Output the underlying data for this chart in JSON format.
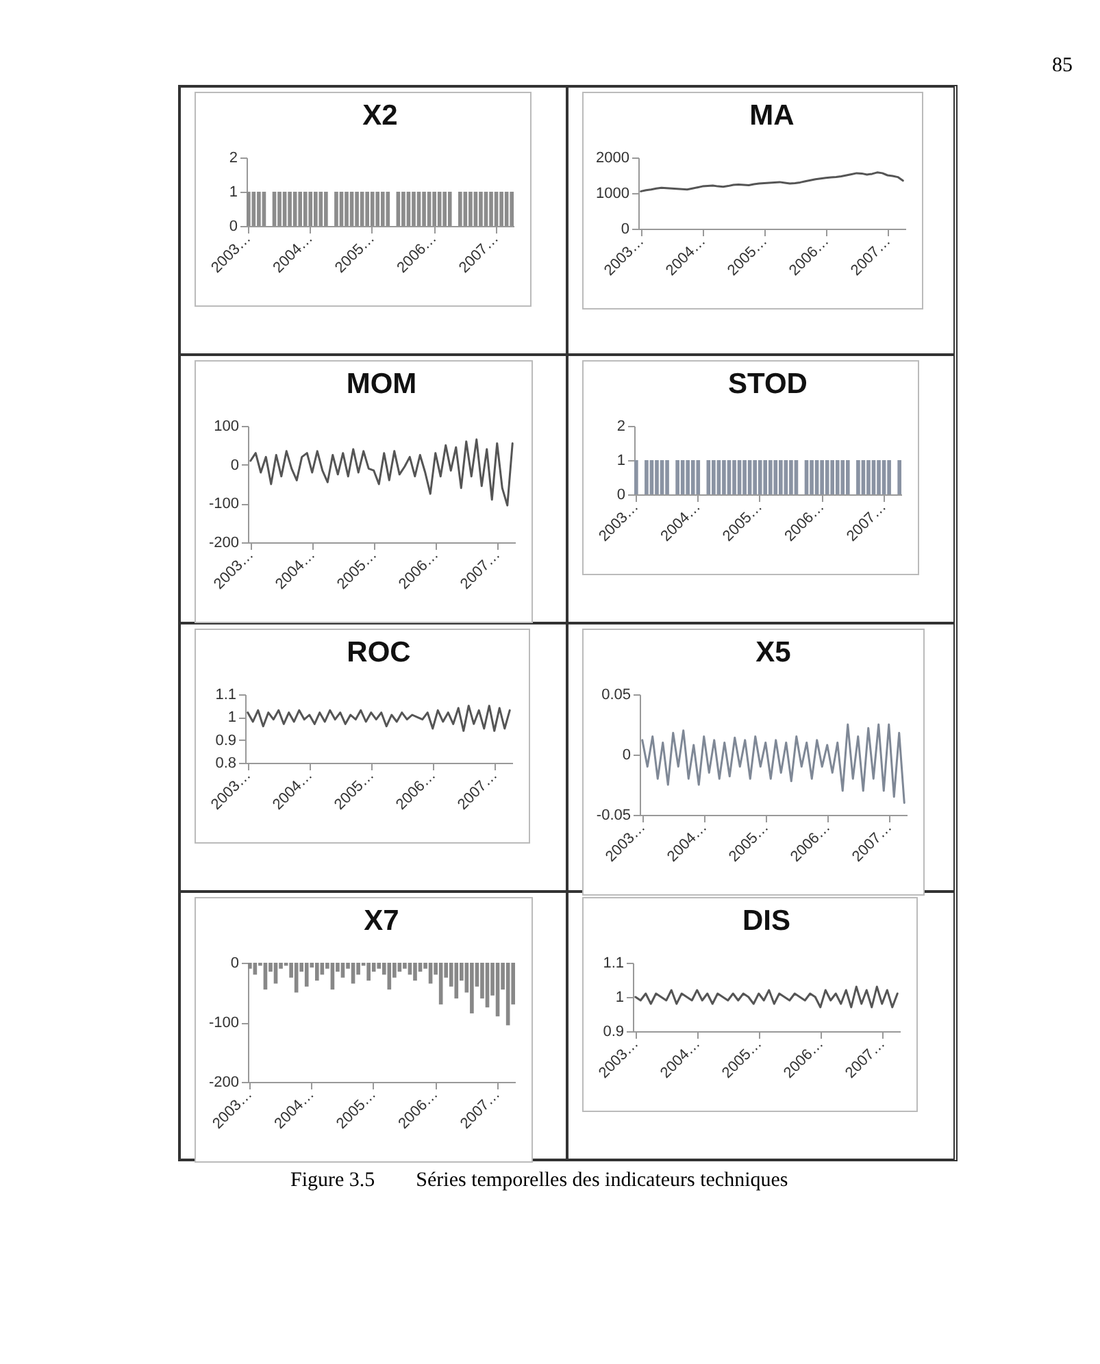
{
  "chart_data": [
    {
      "type": "bar",
      "title": "X2",
      "annotations": [
        "85"
      ],
      "ylim": [
        0,
        2
      ],
      "yticks": [
        0,
        1,
        2
      ],
      "categories": [
        "2003…",
        null,
        null,
        null,
        null,
        null,
        null,
        null,
        null,
        null,
        null,
        null,
        "2004…",
        null,
        null,
        null,
        null,
        null,
        null,
        null,
        null,
        null,
        null,
        null,
        "2005…",
        null,
        null,
        null,
        null,
        null,
        null,
        null,
        null,
        null,
        null,
        null,
        "2006…",
        null,
        null,
        null,
        null,
        null,
        null,
        null,
        null,
        null,
        null,
        null,
        "2007…",
        null,
        null,
        null
      ],
      "series": [
        {
          "color": "#8c8c8c",
          "values": [
            1,
            1,
            1,
            1,
            0,
            1,
            1,
            1,
            1,
            1,
            1,
            1,
            1,
            1,
            1,
            1,
            0,
            1,
            1,
            1,
            1,
            1,
            1,
            1,
            1,
            1,
            1,
            1,
            0,
            1,
            1,
            1,
            1,
            1,
            1,
            1,
            1,
            1,
            1,
            1,
            0,
            1,
            1,
            1,
            1,
            1,
            1,
            1,
            1,
            1,
            1,
            1
          ]
        }
      ]
    },
    {
      "type": "line",
      "title": "MA",
      "ylim": [
        0,
        2000
      ],
      "yticks": [
        0,
        1000,
        2000
      ],
      "categories": [
        "2003…",
        null,
        null,
        null,
        null,
        null,
        null,
        null,
        null,
        null,
        null,
        null,
        "2004…",
        null,
        null,
        null,
        null,
        null,
        null,
        null,
        null,
        null,
        null,
        null,
        "2005…",
        null,
        null,
        null,
        null,
        null,
        null,
        null,
        null,
        null,
        null,
        null,
        "2006…",
        null,
        null,
        null,
        null,
        null,
        null,
        null,
        null,
        null,
        null,
        null,
        "2007…",
        null,
        null,
        null
      ],
      "series": [
        {
          "color": "#555555",
          "values": [
            1050,
            1080,
            1100,
            1130,
            1150,
            1140,
            1130,
            1120,
            1110,
            1100,
            1130,
            1160,
            1190,
            1200,
            1210,
            1190,
            1180,
            1200,
            1230,
            1240,
            1230,
            1220,
            1250,
            1270,
            1280,
            1290,
            1300,
            1310,
            1290,
            1270,
            1280,
            1300,
            1330,
            1360,
            1390,
            1410,
            1430,
            1440,
            1450,
            1470,
            1500,
            1530,
            1560,
            1550,
            1520,
            1540,
            1580,
            1560,
            1500,
            1480,
            1450,
            1350
          ]
        }
      ]
    },
    {
      "type": "line",
      "title": "MOM",
      "ylim": [
        -200,
        100
      ],
      "yticks": [
        -200,
        -100,
        0,
        100
      ],
      "categories": [
        "2003…",
        null,
        null,
        null,
        null,
        null,
        null,
        null,
        null,
        null,
        null,
        null,
        "2004…",
        null,
        null,
        null,
        null,
        null,
        null,
        null,
        null,
        null,
        null,
        null,
        "2005…",
        null,
        null,
        null,
        null,
        null,
        null,
        null,
        null,
        null,
        null,
        null,
        "2006…",
        null,
        null,
        null,
        null,
        null,
        null,
        null,
        null,
        null,
        null,
        null,
        "2007…",
        null,
        null,
        null
      ],
      "series": [
        {
          "color": "#555555",
          "values": [
            10,
            30,
            -20,
            20,
            -50,
            25,
            -30,
            35,
            -10,
            -40,
            20,
            30,
            -20,
            35,
            -15,
            -45,
            25,
            -25,
            30,
            -30,
            40,
            -20,
            35,
            -10,
            -15,
            -50,
            30,
            -40,
            35,
            -25,
            -5,
            20,
            -30,
            25,
            -20,
            -75,
            30,
            -30,
            50,
            -15,
            45,
            -60,
            60,
            -30,
            65,
            -55,
            40,
            -90,
            55,
            -60,
            -105,
            55
          ]
        }
      ]
    },
    {
      "type": "bar",
      "title": "STOD",
      "ylim": [
        0,
        2
      ],
      "yticks": [
        0,
        1,
        2
      ],
      "categories": [
        "2003…",
        null,
        null,
        null,
        null,
        null,
        null,
        null,
        null,
        null,
        null,
        null,
        "2004…",
        null,
        null,
        null,
        null,
        null,
        null,
        null,
        null,
        null,
        null,
        null,
        "2005…",
        null,
        null,
        null,
        null,
        null,
        null,
        null,
        null,
        null,
        null,
        null,
        "2006…",
        null,
        null,
        null,
        null,
        null,
        null,
        null,
        null,
        null,
        null,
        null,
        "2007…",
        null,
        null,
        null
      ],
      "series": [
        {
          "color": "#8a93a3",
          "values": [
            1,
            0,
            1,
            1,
            1,
            1,
            1,
            0,
            1,
            1,
            1,
            1,
            1,
            0,
            1,
            1,
            1,
            1,
            1,
            1,
            1,
            1,
            1,
            1,
            1,
            1,
            1,
            1,
            1,
            1,
            1,
            1,
            0,
            1,
            1,
            1,
            1,
            1,
            1,
            1,
            1,
            1,
            0,
            1,
            1,
            1,
            1,
            1,
            1,
            1,
            0,
            1
          ]
        }
      ]
    },
    {
      "type": "line",
      "title": "ROC",
      "ylim": [
        0.8,
        1.1
      ],
      "yticks": [
        0.8,
        0.9,
        1,
        1.1
      ],
      "categories": [
        "2003…",
        null,
        null,
        null,
        null,
        null,
        null,
        null,
        null,
        null,
        null,
        null,
        "2004…",
        null,
        null,
        null,
        null,
        null,
        null,
        null,
        null,
        null,
        null,
        null,
        "2005…",
        null,
        null,
        null,
        null,
        null,
        null,
        null,
        null,
        null,
        null,
        null,
        "2006…",
        null,
        null,
        null,
        null,
        null,
        null,
        null,
        null,
        null,
        null,
        null,
        "2007…",
        null,
        null,
        null
      ],
      "series": [
        {
          "color": "#555555",
          "values": [
            1.02,
            0.98,
            1.03,
            0.96,
            1.02,
            0.99,
            1.03,
            0.97,
            1.02,
            0.98,
            1.03,
            0.99,
            1.01,
            0.97,
            1.02,
            0.98,
            1.03,
            0.99,
            1.02,
            0.97,
            1.01,
            0.99,
            1.03,
            0.98,
            1.02,
            0.99,
            1.02,
            0.96,
            1.01,
            0.98,
            1.02,
            0.99,
            1.01,
            1.0,
            0.99,
            1.02,
            0.95,
            1.03,
            0.98,
            1.02,
            0.97,
            1.04,
            0.94,
            1.05,
            0.97,
            1.03,
            0.95,
            1.05,
            0.94,
            1.04,
            0.95,
            1.03
          ]
        }
      ]
    },
    {
      "type": "line",
      "title": "X5",
      "ylim": [
        -0.05,
        0.05
      ],
      "yticks": [
        -0.05,
        0,
        0.05
      ],
      "categories": [
        "2003…",
        null,
        null,
        null,
        null,
        null,
        null,
        null,
        null,
        null,
        null,
        null,
        "2004…",
        null,
        null,
        null,
        null,
        null,
        null,
        null,
        null,
        null,
        null,
        null,
        "2005…",
        null,
        null,
        null,
        null,
        null,
        null,
        null,
        null,
        null,
        null,
        null,
        "2006…",
        null,
        null,
        null,
        null,
        null,
        null,
        null,
        null,
        null,
        null,
        null,
        "2007…",
        null,
        null,
        null
      ],
      "series": [
        {
          "color": "#7f8896",
          "values": [
            0.012,
            -0.01,
            0.015,
            -0.02,
            0.01,
            -0.025,
            0.018,
            -0.01,
            0.02,
            -0.02,
            0.008,
            -0.025,
            0.015,
            -0.015,
            0.012,
            -0.02,
            0.01,
            -0.018,
            0.014,
            -0.01,
            0.012,
            -0.02,
            0.015,
            -0.01,
            0.01,
            -0.02,
            0.012,
            -0.015,
            0.01,
            -0.022,
            0.015,
            -0.01,
            0.01,
            -0.02,
            0.012,
            -0.01,
            0.008,
            -0.015,
            0.01,
            -0.03,
            0.025,
            -0.02,
            0.015,
            -0.03,
            0.022,
            -0.02,
            0.025,
            -0.03,
            0.025,
            -0.035,
            0.018,
            -0.04
          ]
        }
      ]
    },
    {
      "type": "bar",
      "title": "X7",
      "ylim": [
        -200,
        0
      ],
      "yticks": [
        -200,
        -100,
        0
      ],
      "categories": [
        "2003…",
        null,
        null,
        null,
        null,
        null,
        null,
        null,
        null,
        null,
        null,
        null,
        "2004…",
        null,
        null,
        null,
        null,
        null,
        null,
        null,
        null,
        null,
        null,
        null,
        "2005…",
        null,
        null,
        null,
        null,
        null,
        null,
        null,
        null,
        null,
        null,
        null,
        "2006…",
        null,
        null,
        null,
        null,
        null,
        null,
        null,
        null,
        null,
        null,
        null,
        "2007…",
        null,
        null,
        null
      ],
      "series": [
        {
          "color": "#888888",
          "values": [
            -10,
            -20,
            -5,
            -45,
            -15,
            -35,
            -10,
            -5,
            -25,
            -50,
            -15,
            -40,
            -8,
            -30,
            -20,
            -10,
            -45,
            -15,
            -25,
            -10,
            -35,
            -20,
            -5,
            -30,
            -15,
            -10,
            -20,
            -45,
            -25,
            -15,
            -10,
            -20,
            -30,
            -15,
            -10,
            -35,
            -20,
            -70,
            -25,
            -40,
            -60,
            -30,
            -50,
            -85,
            -40,
            -60,
            -75,
            -55,
            -90,
            -45,
            -105,
            -70
          ]
        }
      ]
    },
    {
      "type": "line",
      "title": "DIS",
      "annotations": [
        "Figure 3.5        Séries temporelles des indicateurs techniques"
      ],
      "ylim": [
        0.9,
        1.1
      ],
      "yticks": [
        0.9,
        1,
        1.1
      ],
      "categories": [
        "2003…",
        null,
        null,
        null,
        null,
        null,
        null,
        null,
        null,
        null,
        null,
        null,
        "2004…",
        null,
        null,
        null,
        null,
        null,
        null,
        null,
        null,
        null,
        null,
        null,
        "2005…",
        null,
        null,
        null,
        null,
        null,
        null,
        null,
        null,
        null,
        null,
        null,
        "2006…",
        null,
        null,
        null,
        null,
        null,
        null,
        null,
        null,
        null,
        null,
        null,
        "2007…",
        null,
        null,
        null
      ],
      "series": [
        {
          "color": "#555555",
          "values": [
            1.0,
            0.99,
            1.01,
            0.98,
            1.01,
            1.0,
            0.99,
            1.02,
            0.98,
            1.01,
            1.0,
            0.99,
            1.02,
            0.99,
            1.01,
            0.98,
            1.01,
            1.0,
            0.99,
            1.01,
            0.99,
            1.01,
            1.0,
            0.98,
            1.01,
            0.99,
            1.02,
            0.98,
            1.01,
            1.0,
            0.99,
            1.01,
            1.0,
            0.99,
            1.01,
            1.0,
            0.97,
            1.02,
            0.99,
            1.01,
            0.98,
            1.02,
            0.97,
            1.03,
            0.98,
            1.02,
            0.97,
            1.03,
            0.98,
            1.02,
            0.97,
            1.01
          ]
        }
      ]
    }
  ]
}
